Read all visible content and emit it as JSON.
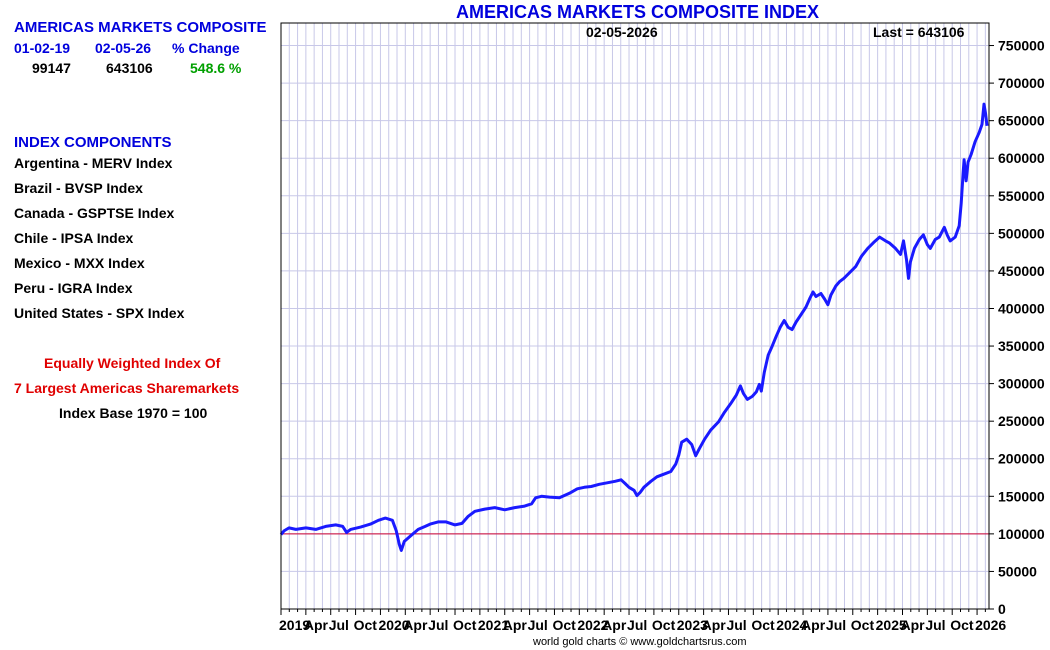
{
  "header": {
    "name": "AMERICAS MARKETS COMPOSITE",
    "col_start_label": "01-02-19",
    "col_end_label": "02-05-26",
    "col_change_label": "% Change",
    "start_value": "99147",
    "end_value": "643106",
    "change_value": "548.6 %"
  },
  "components": {
    "heading": "INDEX COMPONENTS",
    "items": [
      "Argentina - MERV Index",
      "Brazil - BVSP Index",
      "Canada - GSPTSE Index",
      "Chile - IPSA Index",
      "Mexico - MXX Index",
      "Peru - IGRA Index",
      "United States - SPX Index"
    ]
  },
  "notes": {
    "line1": "Equally Weighted Index Of",
    "line2": "7 Largest Americas Sharemarkets",
    "line3": "Index Base 1970 = 100"
  },
  "colors": {
    "series": "#1a1aff",
    "reference_line": "#cc0033",
    "grid": "#c8c8e8",
    "title": "#0000dd"
  },
  "chart_data": {
    "type": "line",
    "title": "AMERICAS MARKETS COMPOSITE INDEX",
    "date_label": "02-05-2026",
    "last_label": "Last = 643106",
    "footer": "world gold charts © www.goldchartsrus.com",
    "xlim": [
      2019.0,
      2026.12
    ],
    "ylim": [
      0,
      780000
    ],
    "y_ticks": [
      0,
      50000,
      100000,
      150000,
      200000,
      250000,
      300000,
      350000,
      400000,
      450000,
      500000,
      550000,
      600000,
      650000,
      700000,
      750000
    ],
    "y_tick_labels": [
      "0",
      "50000",
      "100000",
      "150000",
      "200000",
      "250000",
      "300000",
      "350000",
      "400000",
      "450000",
      "500000",
      "550000",
      "600000",
      "650000",
      "700000",
      "750000"
    ],
    "x_ticks": [
      {
        "x": 2019.0,
        "label": "2019"
      },
      {
        "x": 2019.25,
        "label": "Apr"
      },
      {
        "x": 2019.5,
        "label": "Jul"
      },
      {
        "x": 2019.75,
        "label": "Oct"
      },
      {
        "x": 2020.0,
        "label": "2020"
      },
      {
        "x": 2020.25,
        "label": "Apr"
      },
      {
        "x": 2020.5,
        "label": "Jul"
      },
      {
        "x": 2020.75,
        "label": "Oct"
      },
      {
        "x": 2021.0,
        "label": "2021"
      },
      {
        "x": 2021.25,
        "label": "Apr"
      },
      {
        "x": 2021.5,
        "label": "Jul"
      },
      {
        "x": 2021.75,
        "label": "Oct"
      },
      {
        "x": 2022.0,
        "label": "2022"
      },
      {
        "x": 2022.25,
        "label": "Apr"
      },
      {
        "x": 2022.5,
        "label": "Jul"
      },
      {
        "x": 2022.75,
        "label": "Oct"
      },
      {
        "x": 2023.0,
        "label": "2023"
      },
      {
        "x": 2023.25,
        "label": "Apr"
      },
      {
        "x": 2023.5,
        "label": "Jul"
      },
      {
        "x": 2023.75,
        "label": "Oct"
      },
      {
        "x": 2024.0,
        "label": "2024"
      },
      {
        "x": 2024.25,
        "label": "Apr"
      },
      {
        "x": 2024.5,
        "label": "Jul"
      },
      {
        "x": 2024.75,
        "label": "Oct"
      },
      {
        "x": 2025.0,
        "label": "2025"
      },
      {
        "x": 2025.25,
        "label": "Apr"
      },
      {
        "x": 2025.5,
        "label": "Jul"
      },
      {
        "x": 2025.75,
        "label": "Oct"
      },
      {
        "x": 2026.0,
        "label": "2026"
      }
    ],
    "reference_line": 100000,
    "series": [
      {
        "name": "Americas Markets Composite",
        "points": [
          [
            2019.0,
            99147
          ],
          [
            2019.03,
            104000
          ],
          [
            2019.08,
            108000
          ],
          [
            2019.15,
            106000
          ],
          [
            2019.25,
            108000
          ],
          [
            2019.35,
            106000
          ],
          [
            2019.45,
            110000
          ],
          [
            2019.55,
            112000
          ],
          [
            2019.62,
            110000
          ],
          [
            2019.66,
            102000
          ],
          [
            2019.7,
            106000
          ],
          [
            2019.8,
            109000
          ],
          [
            2019.9,
            113000
          ],
          [
            2019.98,
            118000
          ],
          [
            2020.05,
            121000
          ],
          [
            2020.12,
            118000
          ],
          [
            2020.16,
            104000
          ],
          [
            2020.19,
            86000
          ],
          [
            2020.21,
            78000
          ],
          [
            2020.24,
            90000
          ],
          [
            2020.3,
            97000
          ],
          [
            2020.38,
            106000
          ],
          [
            2020.45,
            110000
          ],
          [
            2020.5,
            113000
          ],
          [
            2020.58,
            116000
          ],
          [
            2020.66,
            116000
          ],
          [
            2020.75,
            112000
          ],
          [
            2020.82,
            114000
          ],
          [
            2020.88,
            123000
          ],
          [
            2020.95,
            130000
          ],
          [
            2021.05,
            133000
          ],
          [
            2021.15,
            135000
          ],
          [
            2021.25,
            132000
          ],
          [
            2021.35,
            135000
          ],
          [
            2021.45,
            137000
          ],
          [
            2021.52,
            140000
          ],
          [
            2021.56,
            148000
          ],
          [
            2021.62,
            150000
          ],
          [
            2021.7,
            149000
          ],
          [
            2021.8,
            148000
          ],
          [
            2021.9,
            154000
          ],
          [
            2021.98,
            160000
          ],
          [
            2022.05,
            162000
          ],
          [
            2022.12,
            163000
          ],
          [
            2022.2,
            166000
          ],
          [
            2022.28,
            168000
          ],
          [
            2022.36,
            170000
          ],
          [
            2022.42,
            172000
          ],
          [
            2022.46,
            167000
          ],
          [
            2022.5,
            162000
          ],
          [
            2022.55,
            158000
          ],
          [
            2022.58,
            151000
          ],
          [
            2022.61,
            155000
          ],
          [
            2022.65,
            162000
          ],
          [
            2022.72,
            170000
          ],
          [
            2022.78,
            176000
          ],
          [
            2022.86,
            180000
          ],
          [
            2022.92,
            183000
          ],
          [
            2022.97,
            193000
          ],
          [
            2023.0,
            205000
          ],
          [
            2023.03,
            222000
          ],
          [
            2023.08,
            226000
          ],
          [
            2023.13,
            219000
          ],
          [
            2023.17,
            204000
          ],
          [
            2023.21,
            214000
          ],
          [
            2023.26,
            226000
          ],
          [
            2023.32,
            238000
          ],
          [
            2023.4,
            249000
          ],
          [
            2023.46,
            262000
          ],
          [
            2023.52,
            273000
          ],
          [
            2023.58,
            285000
          ],
          [
            2023.62,
            297000
          ],
          [
            2023.65,
            287000
          ],
          [
            2023.69,
            279000
          ],
          [
            2023.74,
            283000
          ],
          [
            2023.78,
            289000
          ],
          [
            2023.81,
            299000
          ],
          [
            2023.83,
            290000
          ],
          [
            2023.86,
            315000
          ],
          [
            2023.9,
            338000
          ],
          [
            2023.94,
            350000
          ],
          [
            2023.98,
            363000
          ],
          [
            2024.02,
            375000
          ],
          [
            2024.06,
            384000
          ],
          [
            2024.1,
            375000
          ],
          [
            2024.14,
            372000
          ],
          [
            2024.18,
            382000
          ],
          [
            2024.22,
            390000
          ],
          [
            2024.28,
            402000
          ],
          [
            2024.32,
            414000
          ],
          [
            2024.35,
            422000
          ],
          [
            2024.38,
            416000
          ],
          [
            2024.43,
            420000
          ],
          [
            2024.47,
            412000
          ],
          [
            2024.5,
            405000
          ],
          [
            2024.53,
            418000
          ],
          [
            2024.58,
            430000
          ],
          [
            2024.62,
            436000
          ],
          [
            2024.66,
            440000
          ],
          [
            2024.72,
            448000
          ],
          [
            2024.78,
            456000
          ],
          [
            2024.84,
            470000
          ],
          [
            2024.9,
            480000
          ],
          [
            2024.96,
            488000
          ],
          [
            2025.02,
            495000
          ],
          [
            2025.08,
            490000
          ],
          [
            2025.12,
            487000
          ],
          [
            2025.18,
            480000
          ],
          [
            2025.23,
            472000
          ],
          [
            2025.26,
            490000
          ],
          [
            2025.29,
            465000
          ],
          [
            2025.31,
            440000
          ],
          [
            2025.33,
            462000
          ],
          [
            2025.37,
            480000
          ],
          [
            2025.42,
            492000
          ],
          [
            2025.46,
            498000
          ],
          [
            2025.5,
            485000
          ],
          [
            2025.53,
            480000
          ],
          [
            2025.58,
            492000
          ],
          [
            2025.62,
            495000
          ],
          [
            2025.67,
            508000
          ],
          [
            2025.7,
            498000
          ],
          [
            2025.73,
            490000
          ],
          [
            2025.78,
            495000
          ],
          [
            2025.82,
            510000
          ],
          [
            2025.84,
            540000
          ],
          [
            2025.86,
            580000
          ],
          [
            2025.87,
            598000
          ],
          [
            2025.89,
            570000
          ],
          [
            2025.91,
            595000
          ],
          [
            2025.94,
            605000
          ],
          [
            2025.98,
            622000
          ],
          [
            2026.02,
            634000
          ],
          [
            2026.05,
            645000
          ],
          [
            2026.07,
            672000
          ],
          [
            2026.085,
            660000
          ],
          [
            2026.1,
            643106
          ]
        ]
      }
    ]
  }
}
